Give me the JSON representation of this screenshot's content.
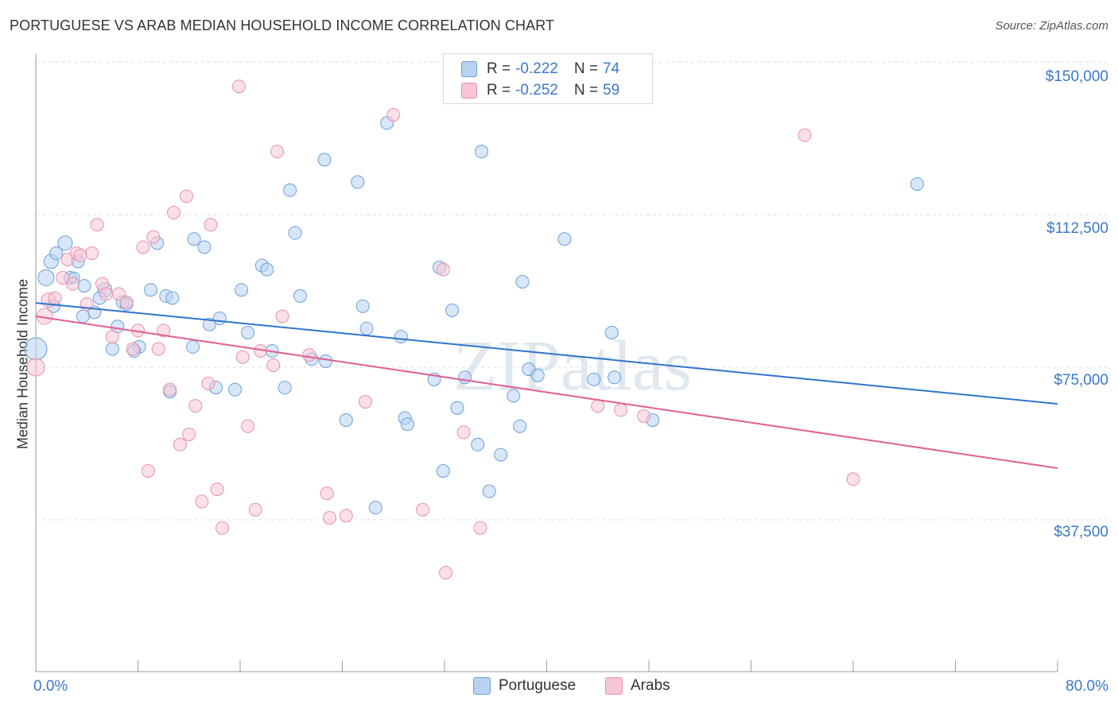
{
  "title": "PORTUGUESE VS ARAB MEDIAN HOUSEHOLD INCOME CORRELATION CHART",
  "source": "Source: ZipAtlas.com",
  "colors": {
    "portuguese_fill": "#b8d3f2",
    "portuguese_stroke": "#6c9fd9",
    "portuguese_line": "#2f74cc",
    "arabs_fill": "#f7c6d5",
    "arabs_stroke": "#e98fae",
    "arabs_line": "#e0618f",
    "axis_text": "#3a78c8"
  },
  "legend": {
    "rows": [
      {
        "r_label": "R =",
        "r_value": "-0.222",
        "n_label": "N =",
        "n_value": "74"
      },
      {
        "r_label": "R =",
        "r_value": "-0.252",
        "n_label": "N =",
        "n_value": "59"
      }
    ],
    "bottom": [
      "Portuguese",
      "Arabs"
    ]
  },
  "watermark": "ZIPatlas",
  "chart_data": {
    "type": "scatter",
    "title": "PORTUGUESE VS ARAB MEDIAN HOUSEHOLD INCOME CORRELATION CHART",
    "xlabel": "",
    "ylabel": "Median Household Income",
    "x_unit": "%",
    "xlim": [
      0,
      80
    ],
    "ylim": [
      0,
      155000
    ],
    "x_tick_labels": [
      "0.0%",
      "80.0%"
    ],
    "y_tick_labels": [
      "$150,000",
      "$112,500",
      "$75,000",
      "$37,500"
    ],
    "y_ticks": [
      150000,
      112500,
      75000,
      37500
    ],
    "grid": true,
    "legend_position": "top-center",
    "series": [
      {
        "name": "Portuguese",
        "R": -0.222,
        "N": 74,
        "trend": {
          "x": [
            0,
            80
          ],
          "y": [
            90800,
            66000
          ]
        },
        "points": [
          [
            0.0,
            79500,
            28
          ],
          [
            0.8,
            97000,
            20
          ],
          [
            1.2,
            101000,
            18
          ],
          [
            1.6,
            103000,
            16
          ],
          [
            2.3,
            105500,
            18
          ],
          [
            1.4,
            90000,
            16
          ],
          [
            2.7,
            97000,
            16
          ],
          [
            3.3,
            101000,
            16
          ],
          [
            3.8,
            95000,
            16
          ],
          [
            5.4,
            94000,
            18
          ],
          [
            4.6,
            88500,
            16
          ],
          [
            3.7,
            87500,
            16
          ],
          [
            5.0,
            92000,
            16
          ],
          [
            6.4,
            85000,
            16
          ],
          [
            6.8,
            91000,
            16
          ],
          [
            7.1,
            90500,
            16
          ],
          [
            6.0,
            79500,
            16
          ],
          [
            8.1,
            80000,
            16
          ],
          [
            7.7,
            79000,
            16
          ],
          [
            9.0,
            94000,
            16
          ],
          [
            10.2,
            92500,
            16
          ],
          [
            10.7,
            92000,
            16
          ],
          [
            9.5,
            105500,
            16
          ],
          [
            10.5,
            69000,
            16
          ],
          [
            12.4,
            106500,
            16
          ],
          [
            13.2,
            104500,
            16
          ],
          [
            12.3,
            80000,
            16
          ],
          [
            13.6,
            85500,
            16
          ],
          [
            14.4,
            87000,
            16
          ],
          [
            14.1,
            70000,
            16
          ],
          [
            15.6,
            69500,
            16
          ],
          [
            16.1,
            94000,
            16
          ],
          [
            16.6,
            83500,
            16
          ],
          [
            17.7,
            100000,
            16
          ],
          [
            18.1,
            99000,
            16
          ],
          [
            18.5,
            79000,
            16
          ],
          [
            19.5,
            70000,
            16
          ],
          [
            19.9,
            118500,
            16
          ],
          [
            20.3,
            108000,
            16
          ],
          [
            20.7,
            92500,
            16
          ],
          [
            21.6,
            77000,
            16
          ],
          [
            22.6,
            126000,
            16
          ],
          [
            22.7,
            76500,
            16
          ],
          [
            24.3,
            62000,
            16
          ],
          [
            25.2,
            120500,
            16
          ],
          [
            25.6,
            90000,
            16
          ],
          [
            25.9,
            84500,
            16
          ],
          [
            26.6,
            40500,
            16
          ],
          [
            27.5,
            135000,
            16
          ],
          [
            28.6,
            82500,
            16
          ],
          [
            28.9,
            62500,
            16
          ],
          [
            29.1,
            61000,
            16
          ],
          [
            31.2,
            72000,
            16
          ],
          [
            31.6,
            99500,
            16
          ],
          [
            31.9,
            49500,
            16
          ],
          [
            32.6,
            89000,
            16
          ],
          [
            33.0,
            65000,
            16
          ],
          [
            33.6,
            72500,
            16
          ],
          [
            34.6,
            56000,
            16
          ],
          [
            34.9,
            128000,
            16
          ],
          [
            35.5,
            44500,
            16
          ],
          [
            36.4,
            53500,
            16
          ],
          [
            37.4,
            68000,
            16
          ],
          [
            37.9,
            60500,
            16
          ],
          [
            38.1,
            96000,
            16
          ],
          [
            38.6,
            74500,
            16
          ],
          [
            39.3,
            73000,
            16
          ],
          [
            41.4,
            106500,
            16
          ],
          [
            43.7,
            72000,
            16
          ],
          [
            45.3,
            72500,
            16
          ],
          [
            45.1,
            83500,
            16
          ],
          [
            48.3,
            62000,
            16
          ],
          [
            69.0,
            120000,
            16
          ],
          [
            3.0,
            97000,
            14
          ]
        ]
      },
      {
        "name": "Arabs",
        "R": -0.252,
        "N": 59,
        "trend": {
          "x": [
            0,
            80
          ],
          "y": [
            87500,
            50200
          ]
        },
        "points": [
          [
            0.0,
            75000,
            22
          ],
          [
            0.7,
            87500,
            20
          ],
          [
            1.0,
            91500,
            18
          ],
          [
            1.5,
            92000,
            16
          ],
          [
            2.1,
            97000,
            16
          ],
          [
            2.5,
            101500,
            16
          ],
          [
            2.9,
            95500,
            16
          ],
          [
            3.2,
            103000,
            16
          ],
          [
            3.5,
            102500,
            16
          ],
          [
            4.0,
            90500,
            16
          ],
          [
            4.4,
            103000,
            16
          ],
          [
            4.8,
            110000,
            16
          ],
          [
            5.2,
            95500,
            16
          ],
          [
            5.5,
            93000,
            16
          ],
          [
            6.0,
            82500,
            16
          ],
          [
            6.5,
            93000,
            16
          ],
          [
            7.1,
            91000,
            16
          ],
          [
            7.6,
            79500,
            16
          ],
          [
            8.0,
            84000,
            16
          ],
          [
            8.4,
            104500,
            16
          ],
          [
            8.8,
            49500,
            16
          ],
          [
            9.2,
            107000,
            16
          ],
          [
            9.6,
            79500,
            16
          ],
          [
            10.0,
            84000,
            16
          ],
          [
            10.5,
            69500,
            16
          ],
          [
            10.8,
            113000,
            16
          ],
          [
            11.3,
            56000,
            16
          ],
          [
            11.8,
            117000,
            16
          ],
          [
            12.0,
            58500,
            16
          ],
          [
            12.5,
            65500,
            16
          ],
          [
            13.0,
            42000,
            16
          ],
          [
            13.5,
            71000,
            16
          ],
          [
            13.7,
            110000,
            16
          ],
          [
            14.2,
            45000,
            16
          ],
          [
            14.6,
            35500,
            16
          ],
          [
            15.9,
            144000,
            16
          ],
          [
            16.2,
            77500,
            16
          ],
          [
            16.6,
            60500,
            16
          ],
          [
            17.2,
            40000,
            16
          ],
          [
            17.6,
            79000,
            16
          ],
          [
            18.6,
            75500,
            16
          ],
          [
            18.9,
            128000,
            16
          ],
          [
            19.3,
            87500,
            16
          ],
          [
            21.4,
            78000,
            16
          ],
          [
            22.8,
            44000,
            16
          ],
          [
            23.0,
            38000,
            16
          ],
          [
            24.3,
            38500,
            16
          ],
          [
            25.8,
            66500,
            16
          ],
          [
            28.0,
            137000,
            16
          ],
          [
            30.3,
            40000,
            16
          ],
          [
            32.1,
            24500,
            16
          ],
          [
            31.9,
            99000,
            16
          ],
          [
            33.5,
            59000,
            16
          ],
          [
            34.8,
            35500,
            16
          ],
          [
            44.0,
            65500,
            16
          ],
          [
            45.8,
            64500,
            16
          ],
          [
            47.6,
            63000,
            16
          ],
          [
            60.2,
            132000,
            16
          ],
          [
            64.0,
            47500,
            16
          ]
        ]
      }
    ]
  }
}
